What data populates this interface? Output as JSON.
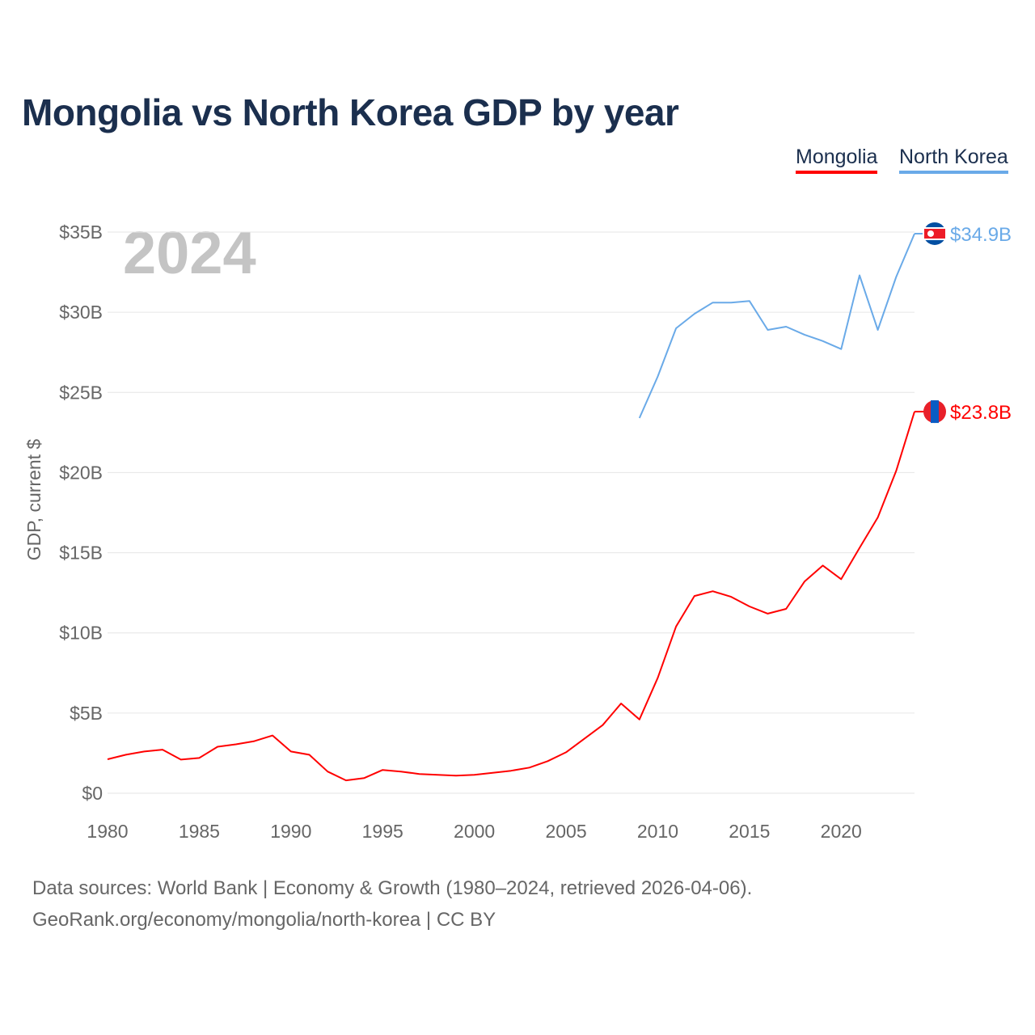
{
  "title": "Mongolia vs North Korea GDP by year",
  "year_label": "2024",
  "footer": {
    "line1": "Data sources: World Bank | Economy & Growth (1980–2024, retrieved 2026-04-06).",
    "line2": "GeoRank.org/economy/mongolia/north-korea | CC BY"
  },
  "chart_data": {
    "type": "line",
    "title": "Mongolia vs North Korea GDP by year",
    "xlabel": "",
    "ylabel": "GDP, current $",
    "xlim": [
      1980,
      2024
    ],
    "ylim": [
      0,
      35
    ],
    "x_ticks": [
      1980,
      1985,
      1990,
      1995,
      2000,
      2005,
      2010,
      2015,
      2020
    ],
    "x_tick_labels": [
      "1980",
      "1985",
      "1990",
      "1995",
      "2000",
      "2005",
      "2010",
      "2015",
      "2020"
    ],
    "y_ticks": [
      0,
      5,
      10,
      15,
      20,
      25,
      30,
      35
    ],
    "y_tick_labels": [
      "$0",
      "$5B",
      "$10B",
      "$15B",
      "$20B",
      "$25B",
      "$30B",
      "$35B"
    ],
    "grid": true,
    "legend_placement": "top-right",
    "series": [
      {
        "name": "Mongolia",
        "color": "#ff0000",
        "end_label": "$23.8B",
        "start_year": 1980,
        "values": [
          2.12,
          2.4,
          2.6,
          2.72,
          2.1,
          2.2,
          2.9,
          3.05,
          3.25,
          3.6,
          2.6,
          2.4,
          1.35,
          0.8,
          0.95,
          1.45,
          1.35,
          1.2,
          1.15,
          1.1,
          1.15,
          1.27,
          1.4,
          1.6,
          2.0,
          2.55,
          3.4,
          4.25,
          5.6,
          4.6,
          7.2,
          10.4,
          12.3,
          12.6,
          12.25,
          11.65,
          11.2,
          11.5,
          13.2,
          14.2,
          13.35,
          15.3,
          17.2,
          20.1,
          23.8
        ]
      },
      {
        "name": "North Korea",
        "color": "#6aaae8",
        "end_label": "$34.9B",
        "start_year": 2009,
        "values": [
          23.4,
          26.0,
          29.0,
          29.9,
          30.6,
          30.6,
          30.7,
          28.9,
          29.1,
          28.6,
          28.2,
          27.7,
          32.3,
          28.9,
          32.2,
          34.9
        ]
      }
    ]
  }
}
